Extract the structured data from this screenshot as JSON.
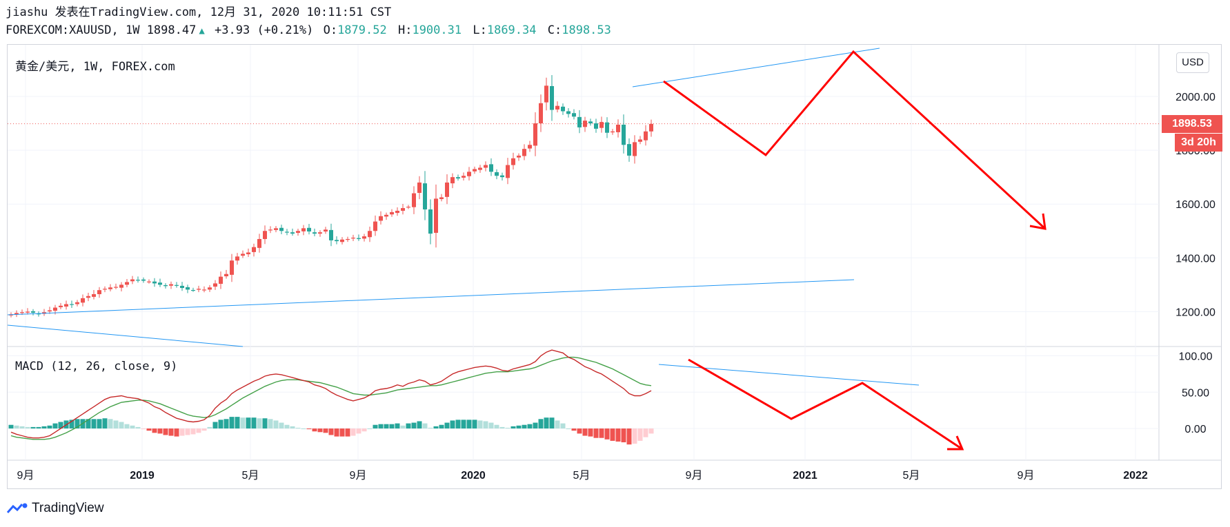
{
  "header": {
    "line1": "jiashu 发表在TradingView.com, 12月 31, 2020 10:11:51 CST",
    "symbol": "FOREXCOM:XAUUSD, 1W 1898.47",
    "change": "+3.93 (+0.21%)",
    "o_label": "O:",
    "o_value": "1879.52",
    "h_label": "H:",
    "h_value": "1900.31",
    "l_label": "L:",
    "l_value": "1869.34",
    "c_label": "C:",
    "c_value": "1898.53"
  },
  "main_pane": {
    "label": "黄金/美元, 1W, FOREX.com",
    "currency_button": "USD",
    "price_tag": "1898.53",
    "countdown_tag": "3d 20h",
    "y_ticks": [
      "2000.00",
      "1800.00",
      "1600.00",
      "1400.00",
      "1200.00"
    ],
    "y_tick_values": [
      2000,
      1800,
      1600,
      1400,
      1200
    ]
  },
  "macd_pane": {
    "label": "MACD (12, 26, close, 9)",
    "y_ticks": [
      "100.00",
      "50.00",
      "0.00"
    ],
    "y_tick_values": [
      100,
      50,
      0
    ]
  },
  "x_axis": {
    "labels": [
      "9月",
      "2019",
      "5月",
      "9月",
      "2020",
      "5月",
      "9月",
      "2021",
      "5月",
      "9月",
      "2022"
    ],
    "bold": [
      false,
      true,
      false,
      false,
      true,
      false,
      false,
      true,
      false,
      false,
      true
    ]
  },
  "branding": {
    "logo_text": "TradingView"
  },
  "colors": {
    "up": "#ef5350",
    "down": "#26a69a",
    "macd_line": "#c62828",
    "signal_line": "#43a047",
    "hist_pos_strong": "#26a69a",
    "hist_pos_weak": "#b2dfdb",
    "hist_neg_strong": "#ef5350",
    "hist_neg_weak": "#ffcdd2",
    "drawing_red": "#ff0000",
    "trendline_blue": "#2196f3"
  },
  "chart_data": [
    {
      "type": "candlestick",
      "title": "黄金/美元, 1W, FOREX.com",
      "x_unit": "week",
      "x_start": "2018-08",
      "ylim": [
        1100,
        2170
      ],
      "close": [
        1190,
        1195,
        1198,
        1200,
        1196,
        1192,
        1198,
        1205,
        1215,
        1222,
        1228,
        1225,
        1235,
        1250,
        1258,
        1265,
        1280,
        1285,
        1290,
        1292,
        1300,
        1310,
        1320,
        1318,
        1315,
        1312,
        1305,
        1300,
        1295,
        1302,
        1296,
        1288,
        1282,
        1280,
        1285,
        1282,
        1290,
        1305,
        1330,
        1340,
        1390,
        1405,
        1415,
        1420,
        1440,
        1470,
        1500,
        1505,
        1510,
        1500,
        1495,
        1490,
        1500,
        1510,
        1498,
        1490,
        1495,
        1505,
        1465,
        1462,
        1468,
        1470,
        1475,
        1470,
        1480,
        1500,
        1535,
        1555,
        1560,
        1570,
        1575,
        1585,
        1590,
        1640,
        1680,
        1580,
        1490,
        1620,
        1625,
        1680,
        1700,
        1695,
        1705,
        1720,
        1730,
        1735,
        1745,
        1720,
        1705,
        1700,
        1745,
        1770,
        1780,
        1805,
        1820,
        1900,
        1975,
        2040,
        1950,
        1965,
        1945,
        1935,
        1925,
        1885,
        1910,
        1900,
        1880,
        1905,
        1865,
        1870,
        1895,
        1820,
        1780,
        1830,
        1840,
        1870,
        1898
      ]
    },
    {
      "type": "line",
      "title": "MACD (12, 26, close, 9)",
      "ylim": [
        -45,
        110
      ],
      "series": [
        {
          "name": "MACD",
          "values": [
            -5,
            -8,
            -10,
            -12,
            -13,
            -13,
            -12,
            -10,
            -5,
            0,
            5,
            10,
            15,
            20,
            25,
            30,
            35,
            40,
            43,
            44,
            45,
            43,
            42,
            41,
            38,
            35,
            30,
            27,
            22,
            18,
            14,
            12,
            10,
            9,
            10,
            12,
            18,
            28,
            35,
            40,
            48,
            53,
            57,
            61,
            65,
            68,
            72,
            74,
            75,
            74,
            72,
            70,
            68,
            66,
            64,
            60,
            58,
            55,
            50,
            46,
            43,
            40,
            38,
            40,
            42,
            46,
            52,
            54,
            55,
            57,
            60,
            58,
            62,
            64,
            67,
            65,
            60,
            62,
            65,
            70,
            75,
            78,
            80,
            82,
            84,
            85,
            86,
            85,
            83,
            80,
            79,
            82,
            84,
            86,
            88,
            92,
            100,
            105,
            108,
            106,
            104,
            98,
            95,
            90,
            85,
            82,
            78,
            75,
            70,
            65,
            60,
            55,
            48,
            45,
            45,
            48,
            52
          ]
        },
        {
          "name": "Signal",
          "values": [
            -10,
            -12,
            -13,
            -14,
            -15,
            -15,
            -15,
            -14,
            -12,
            -9,
            -6,
            -2,
            2,
            7,
            12,
            17,
            22,
            26,
            30,
            33,
            36,
            37,
            38,
            39,
            39,
            38,
            36,
            34,
            31,
            28,
            25,
            22,
            19,
            17,
            16,
            15,
            16,
            19,
            23,
            27,
            32,
            37,
            42,
            46,
            50,
            54,
            58,
            61,
            64,
            66,
            67,
            67,
            67,
            66,
            65,
            64,
            63,
            61,
            59,
            57,
            54,
            51,
            48,
            47,
            46,
            46,
            47,
            48,
            49,
            51,
            53,
            54,
            55,
            56,
            57,
            58,
            59,
            59,
            60,
            62,
            64,
            66,
            68,
            70,
            72,
            74,
            76,
            77,
            78,
            78,
            78,
            79,
            80,
            81,
            82,
            84,
            87,
            90,
            93,
            95,
            97,
            98,
            98,
            97,
            95,
            93,
            91,
            88,
            85,
            82,
            78,
            74,
            70,
            66,
            62,
            60,
            59
          ]
        }
      ]
    }
  ]
}
